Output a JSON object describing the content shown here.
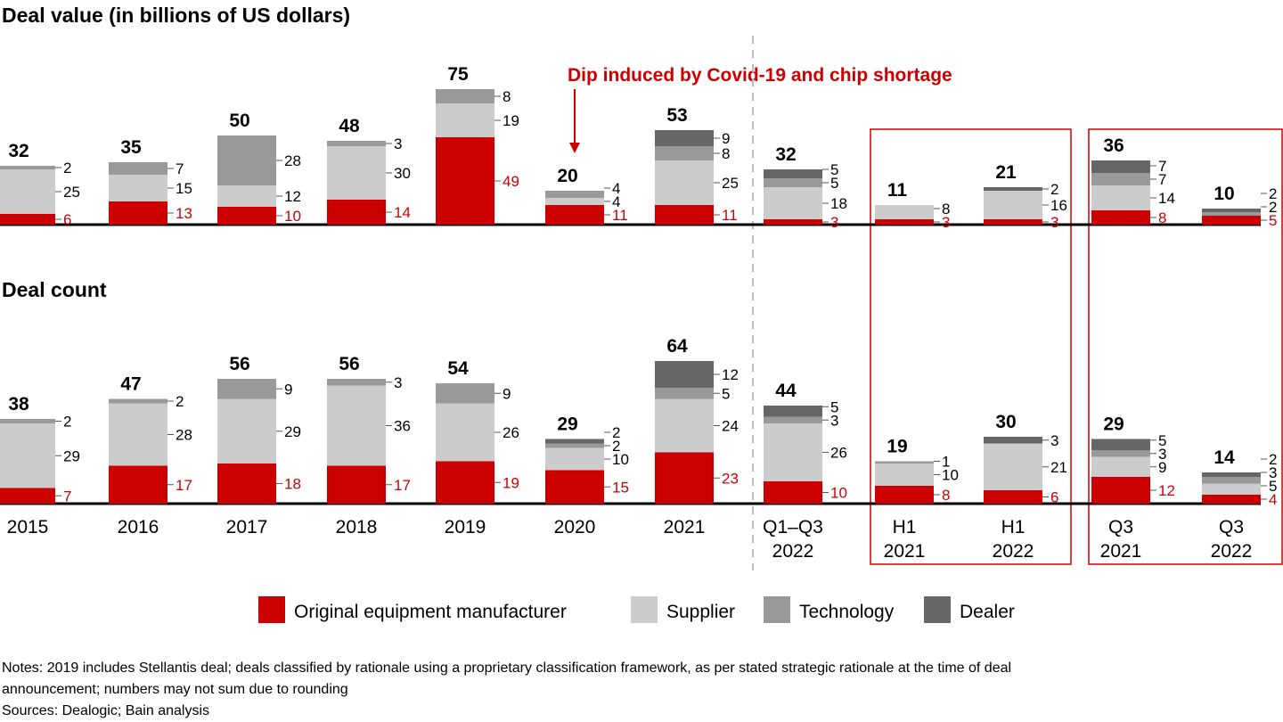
{
  "chart_data": [
    {
      "type": "bar",
      "stacked": true,
      "title": "Deal value (in billions of US dollars)",
      "annotation": "Dip induced by Covid-19 and chip shortage",
      "categories": [
        [
          "2015"
        ],
        [
          "2016"
        ],
        [
          "2017"
        ],
        [
          "2018"
        ],
        [
          "2019"
        ],
        [
          "2020"
        ],
        [
          "2021"
        ],
        [
          "Q1–Q3",
          "2022"
        ],
        [
          "H1",
          "2021"
        ],
        [
          "H1",
          "2022"
        ],
        [
          "Q3",
          "2021"
        ],
        [
          "Q3",
          "2022"
        ]
      ],
      "totals": [
        32,
        35,
        50,
        48,
        75,
        20,
        53,
        32,
        11,
        21,
        36,
        10
      ],
      "series": [
        {
          "name": "Original equipment manufacturer",
          "color": "#cc0000",
          "values": [
            6,
            13,
            10,
            14,
            49,
            11,
            11,
            3,
            3,
            3,
            8,
            5
          ]
        },
        {
          "name": "Supplier",
          "color": "#cccccc",
          "values": [
            25,
            15,
            12,
            30,
            19,
            4,
            25,
            18,
            8,
            16,
            14,
            null
          ]
        },
        {
          "name": "Technology",
          "color": "#999999",
          "values": [
            2,
            7,
            28,
            3,
            8,
            4,
            8,
            5,
            null,
            null,
            7,
            2
          ]
        },
        {
          "name": "Dealer",
          "color": "#666666",
          "values": [
            null,
            null,
            null,
            null,
            null,
            null,
            9,
            5,
            null,
            2,
            7,
            2
          ]
        }
      ]
    },
    {
      "type": "bar",
      "stacked": true,
      "title": "Deal count",
      "categories": [
        [
          "2015"
        ],
        [
          "2016"
        ],
        [
          "2017"
        ],
        [
          "2018"
        ],
        [
          "2019"
        ],
        [
          "2020"
        ],
        [
          "2021"
        ],
        [
          "Q1–Q3",
          "2022"
        ],
        [
          "H1",
          "2021"
        ],
        [
          "H1",
          "2022"
        ],
        [
          "Q3",
          "2021"
        ],
        [
          "Q3",
          "2022"
        ]
      ],
      "totals": [
        38,
        47,
        56,
        56,
        54,
        29,
        64,
        44,
        19,
        30,
        29,
        14
      ],
      "series": [
        {
          "name": "Original equipment manufacturer",
          "color": "#cc0000",
          "values": [
            7,
            17,
            18,
            17,
            19,
            15,
            23,
            10,
            8,
            6,
            12,
            4
          ]
        },
        {
          "name": "Supplier",
          "color": "#cccccc",
          "values": [
            29,
            28,
            29,
            36,
            26,
            10,
            24,
            26,
            10,
            21,
            9,
            5
          ]
        },
        {
          "name": "Technology",
          "color": "#999999",
          "values": [
            2,
            2,
            9,
            3,
            9,
            2,
            5,
            3,
            1,
            null,
            3,
            3
          ]
        },
        {
          "name": "Dealer",
          "color": "#666666",
          "values": [
            null,
            null,
            null,
            null,
            null,
            2,
            12,
            5,
            null,
            3,
            5,
            2
          ]
        }
      ]
    }
  ],
  "legend": [
    "Original equipment manufacturer",
    "Supplier",
    "Technology",
    "Dealer"
  ],
  "notes": [
    "Notes: 2019 includes Stellantis deal; deals classified by rationale using a proprietary classification framework, as per stated strategic rationale at the time of deal",
    "announcement; numbers may not sum due to rounding",
    "Sources: Dealogic; Bain analysis"
  ]
}
